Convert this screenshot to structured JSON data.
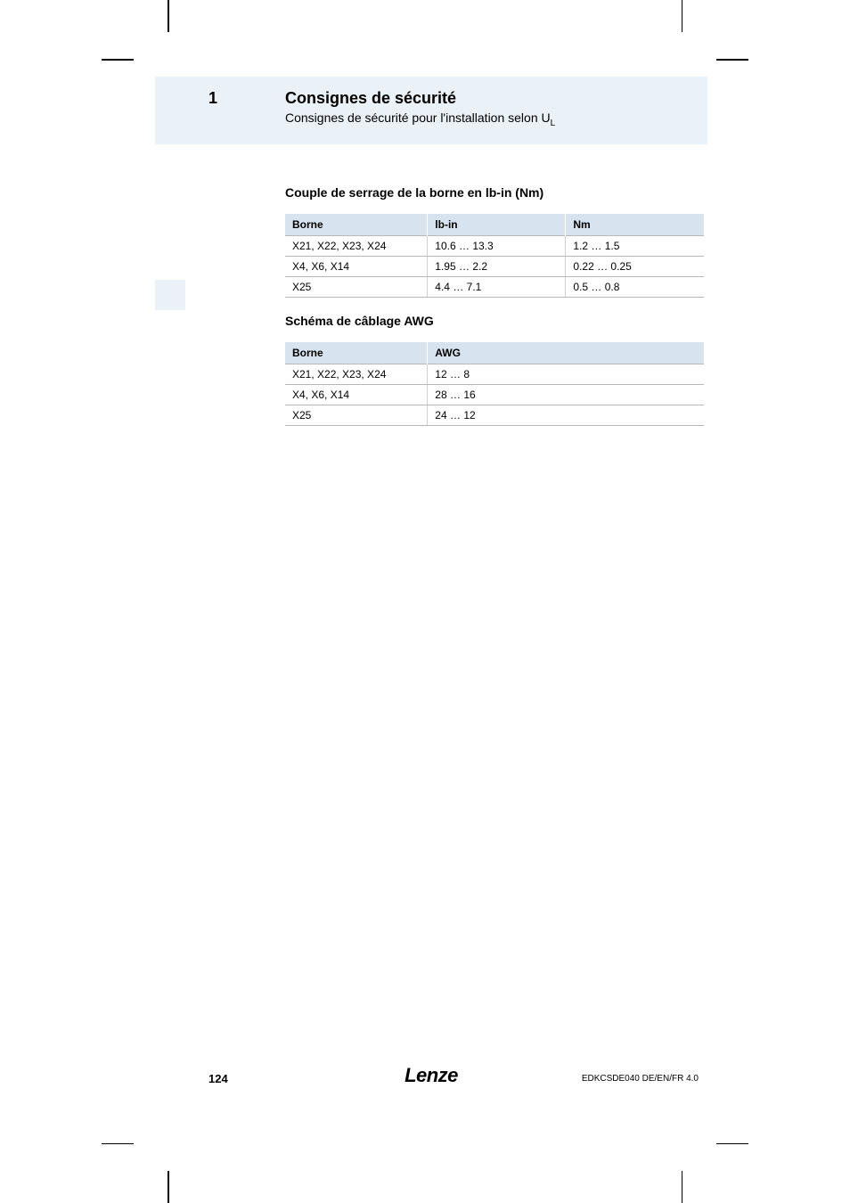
{
  "header": {
    "chapter_number": "1",
    "title": "Consignes de sécurité",
    "subtitle_pre": "Consignes de sécurité pour l'installation selon U",
    "subtitle_sub": "L"
  },
  "torque_section": {
    "heading": "Couple de serrage de la borne en lb-in (Nm)",
    "columns": [
      "Borne",
      "lb-in",
      "Nm"
    ],
    "rows": [
      [
        "X21, X22, X23, X24",
        "10.6 … 13.3",
        "1.2 … 1.5"
      ],
      [
        "X4, X6, X14",
        "1.95 … 2.2",
        "0.22 … 0.25"
      ],
      [
        "X25",
        "4.4 … 7.1",
        "0.5 … 0.8"
      ]
    ]
  },
  "awg_section": {
    "heading": "Schéma de câblage AWG",
    "columns": [
      "Borne",
      "AWG"
    ],
    "rows": [
      [
        "X21, X22, X23, X24",
        "12 … 8"
      ],
      [
        "X4, X6, X14",
        "28 … 16"
      ],
      [
        "X25",
        "24 … 12"
      ]
    ]
  },
  "footer": {
    "page": "124",
    "brand": "Lenze",
    "doc_code": "EDKCSDE040  DE/EN/FR  4.0"
  },
  "style": {
    "header_band_bg": "#eaf1f7",
    "table_header_bg": "#d7e4ef",
    "row_border": "#b8b8b8",
    "col_border": "#d0d0d0",
    "text_color": "#000000",
    "page_bg": "#ffffff",
    "title_fontsize": 18,
    "subtitle_fontsize": 14,
    "heading_fontsize": 14,
    "table_fontsize": 12,
    "footer_page_fontsize": 13,
    "footer_brand_fontsize": 22,
    "footer_code_fontsize": 10,
    "torque_col_widths": [
      "34%",
      "33%",
      "33%"
    ],
    "awg_col_widths": [
      "34%",
      "66%"
    ]
  }
}
